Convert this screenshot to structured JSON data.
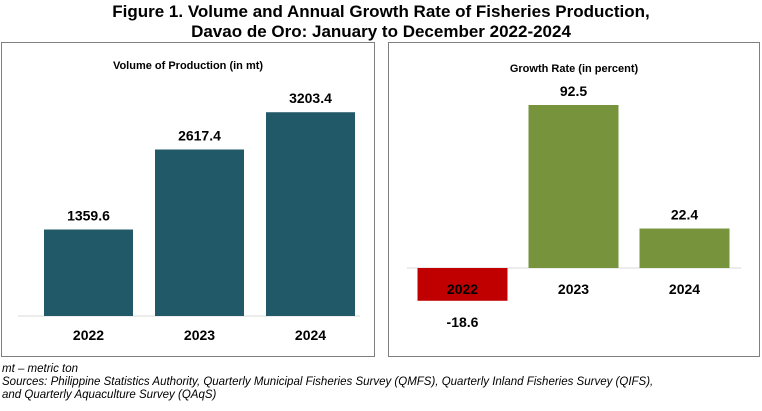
{
  "figure": {
    "title_line1": "Figure 1. Volume and Annual Growth Rate of Fisheries Production,",
    "title_line2": "Davao de Oro: January to December 2022-2024"
  },
  "chart_data": [
    {
      "type": "bar",
      "title": "Volume of Production (in mt)",
      "categories": [
        "2022",
        "2023",
        "2024"
      ],
      "values": [
        1359.6,
        2617.4,
        3203.4
      ],
      "value_labels": [
        "1359.6",
        "2617.4",
        "3203.4"
      ],
      "ylim": [
        0,
        3600
      ],
      "grid": false,
      "colors": [
        "#215968",
        "#215968",
        "#215968"
      ]
    },
    {
      "type": "bar",
      "title": "Growth Rate (in percent)",
      "categories": [
        "2022",
        "2023",
        "2024"
      ],
      "values": [
        -18.6,
        92.5,
        22.4
      ],
      "value_labels": [
        "-18.6",
        "92.5",
        "22.4"
      ],
      "ylim": [
        -30,
        105
      ],
      "grid": false,
      "colors": [
        "#c00000",
        "#77933c",
        "#77933c"
      ]
    }
  ],
  "notes": {
    "definition": "mt – metric ton",
    "sources_line1": "Sources: Philippine Statistics Authority, Quarterly Municipal Fisheries Survey (QMFS), Quarterly Inland Fisheries Survey (QIFS),",
    "sources_line2": "and Quarterly Aquaculture Survey (QAqS)"
  }
}
